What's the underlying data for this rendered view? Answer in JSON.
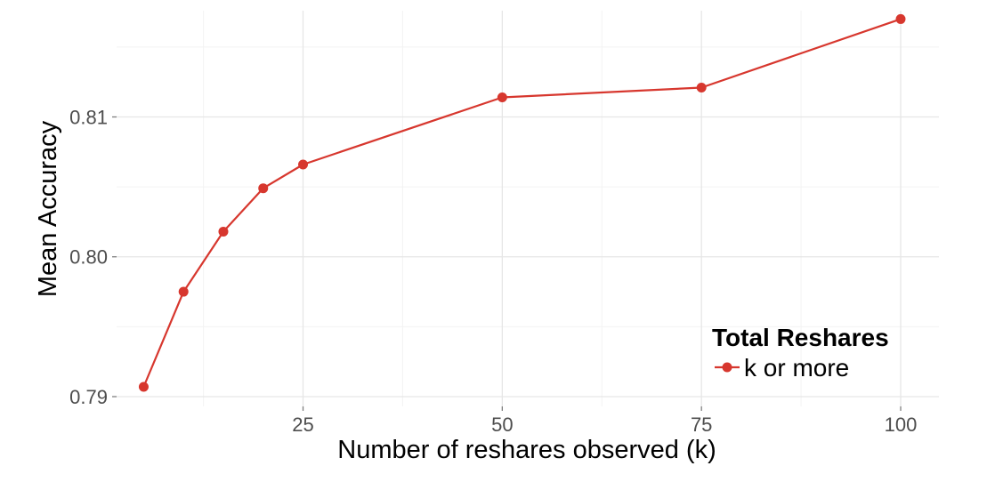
{
  "chart_data": {
    "type": "line",
    "x": [
      5,
      10,
      15,
      20,
      25,
      50,
      75,
      100
    ],
    "series": [
      {
        "name": "k or more",
        "values": [
          0.7907,
          0.7975,
          0.8018,
          0.8049,
          0.8066,
          0.8114,
          0.8121,
          0.817
        ],
        "color": "#d7372e"
      }
    ],
    "xlabel": "Number of reshares observed (k)",
    "ylabel": "Mean Accuracy",
    "x_ticks": [
      25,
      50,
      75,
      100
    ],
    "x_tick_labels": [
      "25",
      "50",
      "75",
      "100"
    ],
    "y_ticks": [
      0.79,
      0.8,
      0.81
    ],
    "y_tick_labels": [
      "0.79",
      "0.80",
      "0.81"
    ],
    "xlim": [
      1.6,
      104.8
    ],
    "ylim": [
      0.7893,
      0.8176
    ],
    "grid": true,
    "legend": {
      "title": "Total Reshares",
      "placement": "bottom-right inside"
    }
  }
}
